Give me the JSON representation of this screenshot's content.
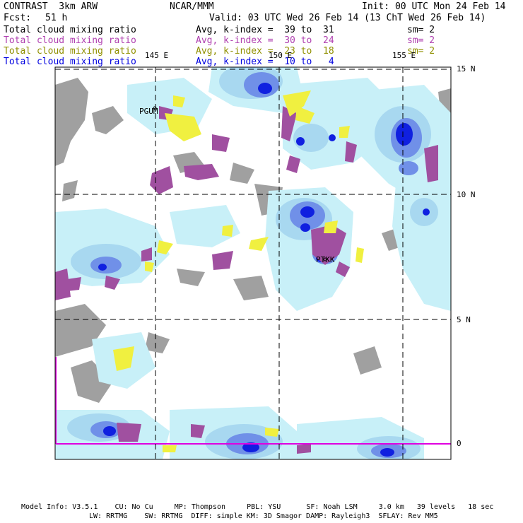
{
  "header": {
    "model": "CONTRAST  3km ARW",
    "center": "NCAR/MMM",
    "init": "Init: 00 UTC Mon 24 Feb 14",
    "fcst_label": "Fcst:",
    "fcst_value": "51 h",
    "valid": "Valid: 03 UTC Wed 26 Feb 14 (13 ChT Wed 26 Feb 14)"
  },
  "legend": [
    {
      "field": "Total cloud mixing ratio",
      "stat": "Avg, k-index =  39 to  31",
      "sm": "sm= 2",
      "color": "#000000"
    },
    {
      "field": "Total cloud mixing ratio",
      "stat": "Avg, k-index =  30 to  24",
      "sm": "sm= 2",
      "color": "#b040b0"
    },
    {
      "field": "Total cloud mixing ratio",
      "stat": "Avg, k-index =  23 to  18",
      "sm": "sm= 2",
      "color": "#909000"
    },
    {
      "field": "Total cloud mixing ratio",
      "stat": "Avg, k-index =  10 to   4",
      "sm": "",
      "color": "#0000e0"
    }
  ],
  "map": {
    "lon_labels": [
      "145 E",
      "150 E",
      "155 E"
    ],
    "lat_labels": [
      "15 N",
      "10 N",
      "5 N",
      "0"
    ],
    "stations": [
      "PGUM",
      "PTKK"
    ],
    "colors": {
      "terrain_gray": "#a0a0a0",
      "cloud_light": "#c8f0f8",
      "cloud_mid": "#a8d8f0",
      "cloud_blue": "#7090e8",
      "cloud_dark": "#1020e0",
      "mid_purple": "#a050a0",
      "low_yellow": "#f0f040",
      "boundary": "#e000e0"
    }
  },
  "footer": {
    "line1": "Model Info: V3.5.1    CU: No Cu     MP: Thompson     PBL: YSU      SF: Noah LSM     3.0 km   39 levels   18 sec",
    "line2": "LW: RRTMG    SW: RRTMG  DIFF: simple KM: 3D Smagor DAMP: Rayleigh3  SFLAY: Rev MM5"
  }
}
